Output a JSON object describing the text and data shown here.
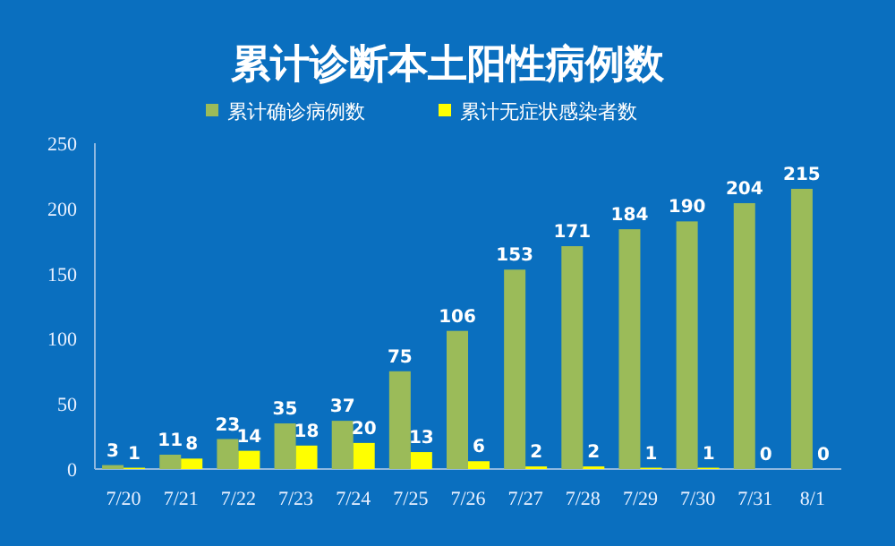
{
  "chart_data": {
    "type": "bar",
    "title": "累计诊断本土阳性病例数",
    "categories": [
      "7/20",
      "7/21",
      "7/22",
      "7/23",
      "7/24",
      "7/25",
      "7/26",
      "7/27",
      "7/28",
      "7/29",
      "7/30",
      "7/31",
      "8/1"
    ],
    "series": [
      {
        "name": "累计确诊病例数",
        "color": "#9bbb59",
        "values": [
          3,
          11,
          23,
          35,
          37,
          75,
          106,
          153,
          171,
          184,
          190,
          204,
          215
        ]
      },
      {
        "name": "累计无症状感染者数",
        "color": "#ffff00",
        "values": [
          1,
          8,
          14,
          18,
          20,
          13,
          6,
          2,
          2,
          1,
          1,
          0,
          0
        ]
      }
    ],
    "ylim": [
      0,
      250
    ],
    "yticks": [
      0,
      50,
      100,
      150,
      200,
      250
    ],
    "data_labels": true,
    "legend": "top",
    "grid": false
  }
}
